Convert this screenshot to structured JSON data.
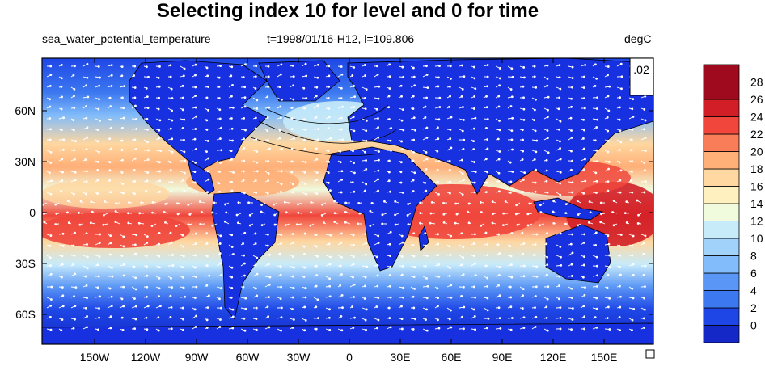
{
  "title": "Selecting index 10 for level and 0 for time",
  "left_string": "sea_water_potential_temperature",
  "center_string": "t=1998/01/16-H12, l=109.806",
  "right_string": "degC",
  "vector_ref_label": ".02",
  "lon_ticks": [
    "150W",
    "120W",
    "90W",
    "60W",
    "30W",
    "0",
    "30E",
    "60E",
    "90E",
    "120E",
    "150E"
  ],
  "lat_ticks": [
    "60N",
    "30N",
    "0",
    "30S",
    "60S"
  ],
  "colorbar": {
    "labels": [
      "0",
      "2",
      "4",
      "6",
      "8",
      "10",
      "12",
      "14",
      "16",
      "18",
      "20",
      "22",
      "24",
      "26",
      "28"
    ],
    "colors": [
      "#1428c8",
      "#1e46e6",
      "#3c78f0",
      "#5a96f5",
      "#82bcfa",
      "#a0d2fa",
      "#c8ebfa",
      "#f0fadc",
      "#fff0c0",
      "#ffd7a0",
      "#ffaf78",
      "#fa7d5a",
      "#f0463c",
      "#d21e26",
      "#a00a1e"
    ]
  },
  "colors": {
    "land": "#1730e0",
    "ocean_cold": "#1e46e6",
    "ocean_warm": "#f0463c"
  }
}
